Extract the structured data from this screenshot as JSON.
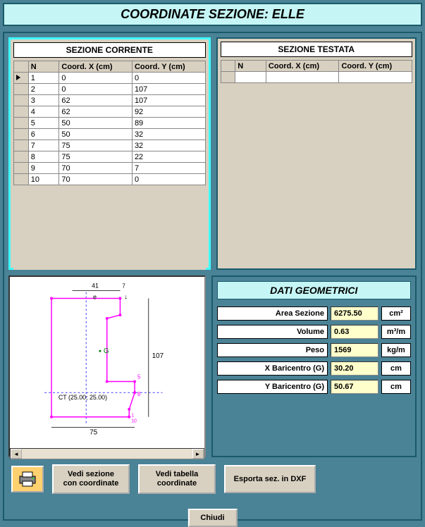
{
  "title": "COORDINATE SEZIONE: ELLE",
  "sections": {
    "corrente": {
      "header": "SEZIONE CORRENTE",
      "columns": {
        "n": "N",
        "x": "Coord. X (cm)",
        "y": "Coord. Y (cm)"
      },
      "rows": [
        {
          "n": "1",
          "x": "0",
          "y": "0",
          "selected": true
        },
        {
          "n": "2",
          "x": "0",
          "y": "107"
        },
        {
          "n": "3",
          "x": "62",
          "y": "107"
        },
        {
          "n": "4",
          "x": "62",
          "y": "92"
        },
        {
          "n": "5",
          "x": "50",
          "y": "89"
        },
        {
          "n": "6",
          "x": "50",
          "y": "32"
        },
        {
          "n": "7",
          "x": "75",
          "y": "32"
        },
        {
          "n": "8",
          "x": "75",
          "y": "22"
        },
        {
          "n": "9",
          "x": "70",
          "y": "7"
        },
        {
          "n": "10",
          "x": "70",
          "y": "0"
        }
      ]
    },
    "testata": {
      "header": "SEZIONE TESTATA",
      "columns": {
        "n": "N",
        "x": "Coord. X (cm)",
        "y": "Coord. Y (cm)"
      },
      "rows": []
    }
  },
  "diagram": {
    "top_dim": "41",
    "top_letter": "e",
    "right_dim": "107",
    "bottom_dim": "75",
    "ct_label": "CT (25.00; 25.00)",
    "g_label": "G",
    "top_small": "7",
    "right_small_top": "5",
    "right_small_bot": "8",
    "bottom_right_nums": "1\n10",
    "shape_stroke": "#ff00ff",
    "shape_fill": "none",
    "guide_stroke": "#4040ff",
    "text_color": "#000000"
  },
  "geo": {
    "header": "DATI GEOMETRICI",
    "rows": [
      {
        "label": "Area Sezione",
        "value": "6275.50",
        "unit": "cm²"
      },
      {
        "label": "Volume",
        "value": "0.63",
        "unit": "m³/m"
      },
      {
        "label": "Peso",
        "value": "1569",
        "unit": "kg/m"
      },
      {
        "label": "X Baricentro (G)",
        "value": "30.20",
        "unit": "cm"
      },
      {
        "label": "Y Baricentro (G)",
        "value": "50.67",
        "unit": "cm"
      }
    ]
  },
  "buttons": {
    "vedi_sezione": "Vedi sezione\ncon coordinate",
    "vedi_tabella": "Vedi tabella\ncoordinate",
    "esporta": "Esporta sez. in DXF",
    "chiudi": "Chiudi"
  }
}
